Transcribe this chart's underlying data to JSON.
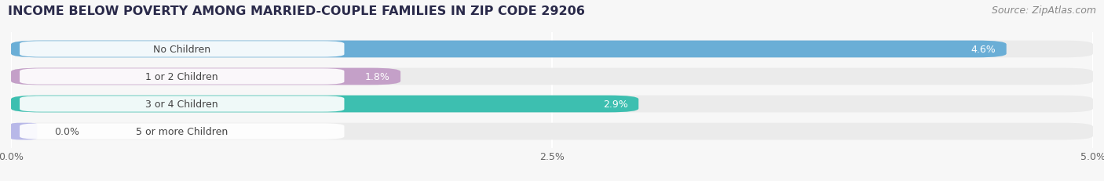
{
  "title": "INCOME BELOW POVERTY AMONG MARRIED-COUPLE FAMILIES IN ZIP CODE 29206",
  "source": "Source: ZipAtlas.com",
  "categories": [
    "No Children",
    "1 or 2 Children",
    "3 or 4 Children",
    "5 or more Children"
  ],
  "values": [
    4.6,
    1.8,
    2.9,
    0.0
  ],
  "bar_colors": [
    "#6aaed6",
    "#c4a0c8",
    "#3dbfb0",
    "#b8b8e8"
  ],
  "xlim": [
    0,
    5.0
  ],
  "xticks": [
    0.0,
    2.5,
    5.0
  ],
  "xticklabels": [
    "0.0%",
    "2.5%",
    "5.0%"
  ],
  "title_fontsize": 11.5,
  "source_fontsize": 9,
  "label_fontsize": 9,
  "value_fontsize": 9,
  "bar_height": 0.62,
  "background_color": "#f7f7f7",
  "bar_bg_color": "#ebebeb",
  "label_bg_color": "#ffffff",
  "value_label_color": "#555555"
}
